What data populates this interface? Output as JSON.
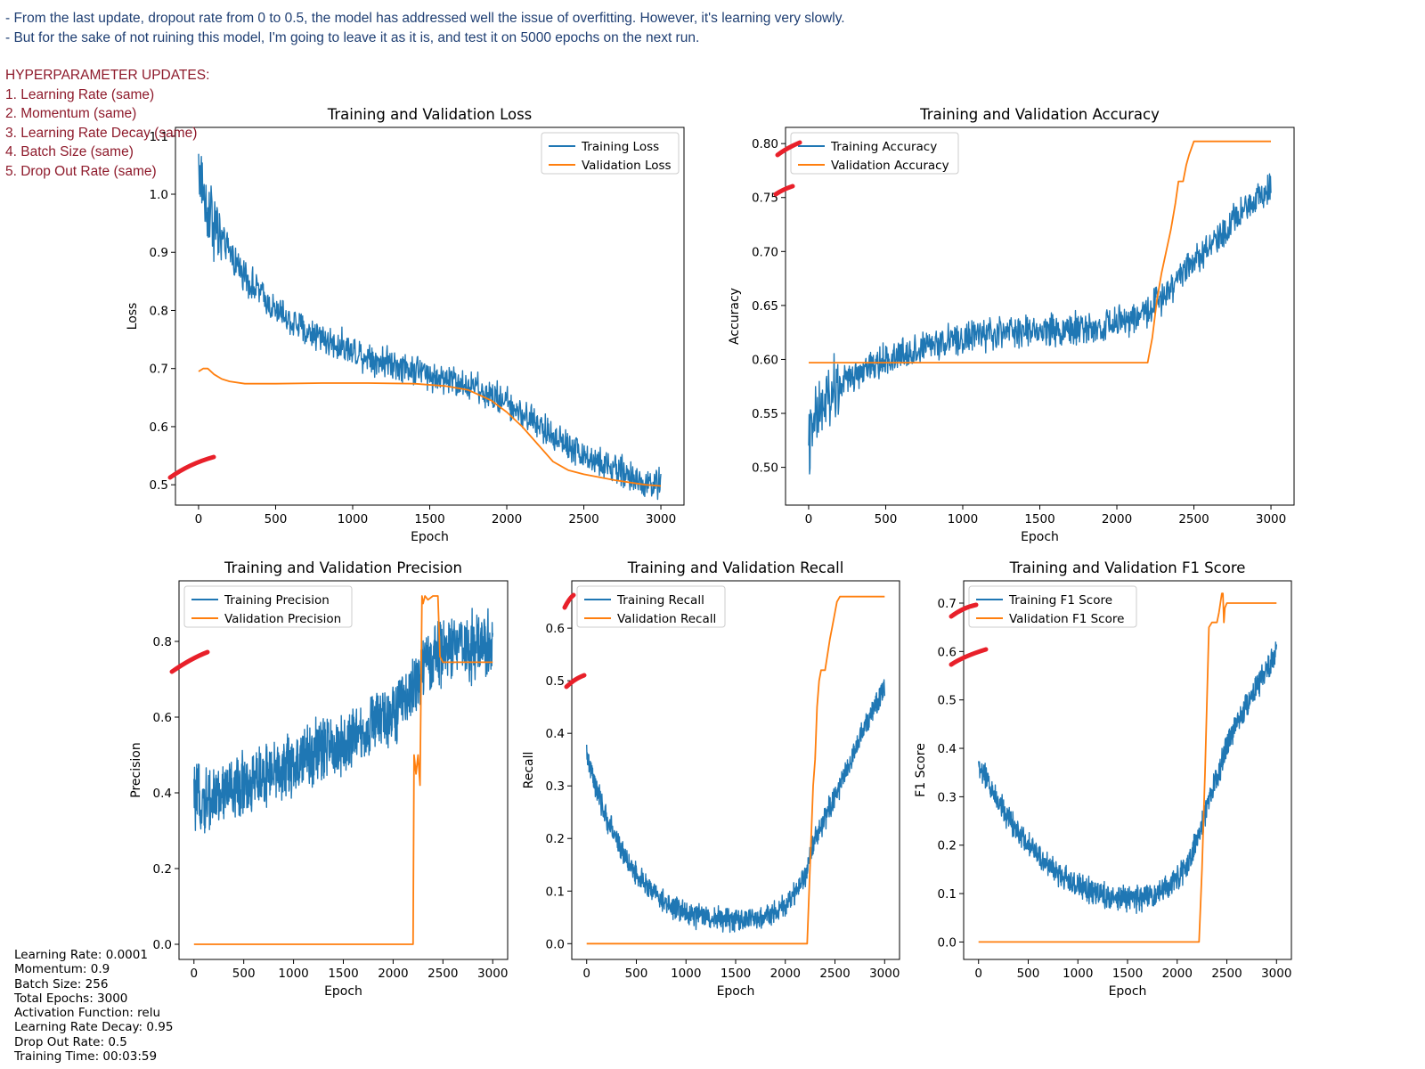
{
  "notes": [
    "- From the last update, dropout rate from 0 to 0.5, the model has addressed well the issue of overfitting. However, it's learning very slowly.",
    "- But for the sake of not ruining this model, I'm going to leave it as it is, and test it on 5000 epochs on the next run."
  ],
  "hyperparameters": {
    "title": "HYPERPARAMETER UPDATES:",
    "items": [
      "1. Learning Rate (same)",
      "2. Momentum (same)",
      "3. Learning Rate Decay (same)",
      "4. Batch Size (same)",
      "5. Drop Out Rate (same)"
    ]
  },
  "config": [
    "Learning Rate: 0.0001",
    "Momentum: 0.9",
    "Batch Size: 256",
    "Total Epochs: 3000",
    "Activation Function: relu",
    "Learning Rate Decay: 0.95",
    "Drop Out Rate: 0.5",
    "Training Time: 00:03:59"
  ],
  "colors": {
    "training": "#1f77b4",
    "validation": "#ff7f0e",
    "annotation": "#e8202a",
    "notes": "#1f3f73",
    "hyper": "#8e1a2b"
  },
  "chart_data": [
    {
      "type": "line",
      "title": "Training and Validation Loss",
      "xlabel": "Epoch",
      "ylabel": "Loss",
      "xlim": [
        -150,
        3150
      ],
      "ylim": [
        0.465,
        1.115
      ],
      "xticks": [
        0,
        500,
        1000,
        1500,
        2000,
        2500,
        3000
      ],
      "yticks": [
        "0.5",
        "0.6",
        "0.7",
        "0.8",
        "0.9",
        "1.0",
        "1.1"
      ],
      "legend": "upper right",
      "series": [
        {
          "name": "Training Loss",
          "kind": "training",
          "x": [
            0,
            50,
            100,
            200,
            300,
            400,
            500,
            700,
            900,
            1100,
            1300,
            1500,
            1700,
            1900,
            2100,
            2300,
            2500,
            2700,
            2900,
            3000
          ],
          "y": [
            1.05,
            0.98,
            0.95,
            0.9,
            0.86,
            0.83,
            0.8,
            0.765,
            0.74,
            0.72,
            0.705,
            0.69,
            0.675,
            0.655,
            0.625,
            0.585,
            0.55,
            0.525,
            0.505,
            0.5
          ]
        },
        {
          "name": "Validation Loss",
          "kind": "validation",
          "x": [
            0,
            30,
            60,
            100,
            150,
            200,
            300,
            500,
            800,
            1100,
            1400,
            1600,
            1750,
            1900,
            2000,
            2100,
            2200,
            2300,
            2400,
            2500,
            2700,
            2900,
            3000
          ],
          "y": [
            0.695,
            0.7,
            0.7,
            0.69,
            0.682,
            0.678,
            0.674,
            0.674,
            0.675,
            0.675,
            0.674,
            0.67,
            0.663,
            0.645,
            0.625,
            0.6,
            0.57,
            0.54,
            0.525,
            0.518,
            0.508,
            0.5,
            0.498
          ]
        }
      ]
    },
    {
      "type": "line",
      "title": "Training and Validation Accuracy",
      "xlabel": "Epoch",
      "ylabel": "Accuracy",
      "xlim": [
        -150,
        3150
      ],
      "ylim": [
        0.465,
        0.815
      ],
      "xticks": [
        0,
        500,
        1000,
        1500,
        2000,
        2500,
        3000
      ],
      "yticks": [
        "0.50",
        "0.55",
        "0.60",
        "0.65",
        "0.70",
        "0.75",
        "0.80"
      ],
      "legend": "upper left",
      "series": [
        {
          "name": "Training Accuracy",
          "kind": "training",
          "x": [
            0,
            50,
            100,
            200,
            300,
            500,
            700,
            900,
            1100,
            1300,
            1500,
            1700,
            1900,
            2100,
            2200,
            2300,
            2400,
            2500,
            2600,
            2700,
            2800,
            2900,
            3000
          ],
          "y": [
            0.52,
            0.545,
            0.56,
            0.575,
            0.585,
            0.6,
            0.61,
            0.617,
            0.622,
            0.625,
            0.627,
            0.628,
            0.63,
            0.637,
            0.645,
            0.66,
            0.677,
            0.692,
            0.705,
            0.72,
            0.735,
            0.75,
            0.762
          ]
        },
        {
          "name": "Validation Accuracy",
          "kind": "validation",
          "x": [
            0,
            2200,
            2230,
            2260,
            2290,
            2320,
            2350,
            2380,
            2400,
            2430,
            2450,
            2470,
            2500,
            3000
          ],
          "y": [
            0.597,
            0.597,
            0.62,
            0.655,
            0.68,
            0.7,
            0.72,
            0.745,
            0.765,
            0.765,
            0.78,
            0.79,
            0.802,
            0.802
          ]
        }
      ]
    },
    {
      "type": "line",
      "title": "Training and Validation Precision",
      "xlabel": "Epoch",
      "ylabel": "Precision",
      "xlim": [
        -150,
        3150
      ],
      "ylim": [
        -0.04,
        0.96
      ],
      "xticks": [
        0,
        500,
        1000,
        1500,
        2000,
        2500,
        3000
      ],
      "yticks": [
        "0.0",
        "0.2",
        "0.4",
        "0.6",
        "0.8"
      ],
      "legend": "upper left",
      "series": [
        {
          "name": "Training Precision",
          "kind": "training",
          "x": [
            0,
            200,
            400,
            600,
            800,
            1000,
            1200,
            1400,
            1600,
            1800,
            2000,
            2100,
            2200,
            2300,
            2400,
            2500,
            2700,
            2900,
            3000
          ],
          "y": [
            0.38,
            0.39,
            0.41,
            0.43,
            0.45,
            0.47,
            0.5,
            0.52,
            0.55,
            0.58,
            0.62,
            0.64,
            0.68,
            0.72,
            0.76,
            0.78,
            0.79,
            0.79,
            0.79
          ]
        },
        {
          "name": "Validation Precision",
          "kind": "validation",
          "x": [
            0,
            2200,
            2210,
            2230,
            2250,
            2270,
            2290,
            2300,
            2320,
            2350,
            2400,
            2450,
            2470,
            2500,
            2600,
            3000
          ],
          "y": [
            0.0,
            0.0,
            0.5,
            0.45,
            0.5,
            0.42,
            0.92,
            0.9,
            0.92,
            0.91,
            0.92,
            0.92,
            0.76,
            0.745,
            0.745,
            0.745
          ]
        }
      ]
    },
    {
      "type": "line",
      "title": "Training and Validation Recall",
      "xlabel": "Epoch",
      "ylabel": "Recall",
      "xlim": [
        -150,
        3150
      ],
      "ylim": [
        -0.03,
        0.69
      ],
      "xticks": [
        0,
        500,
        1000,
        1500,
        2000,
        2500,
        3000
      ],
      "yticks": [
        "0.0",
        "0.1",
        "0.2",
        "0.3",
        "0.4",
        "0.5",
        "0.6"
      ],
      "legend": "upper left",
      "series": [
        {
          "name": "Training Recall",
          "kind": "training",
          "x": [
            0,
            100,
            200,
            400,
            600,
            800,
            1000,
            1200,
            1400,
            1600,
            1800,
            2000,
            2200,
            2300,
            2400,
            2500,
            2600,
            2700,
            2800,
            2900,
            3000
          ],
          "y": [
            0.36,
            0.29,
            0.24,
            0.16,
            0.11,
            0.075,
            0.058,
            0.05,
            0.045,
            0.045,
            0.05,
            0.07,
            0.13,
            0.2,
            0.24,
            0.28,
            0.32,
            0.37,
            0.41,
            0.45,
            0.49
          ]
        },
        {
          "name": "Validation Recall",
          "kind": "validation",
          "x": [
            0,
            2220,
            2250,
            2280,
            2300,
            2320,
            2340,
            2360,
            2400,
            2450,
            2470,
            2500,
            2520,
            2550,
            3000
          ],
          "y": [
            0.0,
            0.0,
            0.15,
            0.3,
            0.35,
            0.45,
            0.5,
            0.52,
            0.52,
            0.58,
            0.6,
            0.63,
            0.65,
            0.66,
            0.66
          ]
        }
      ]
    },
    {
      "type": "line",
      "title": "Training and Validation F1 Score",
      "xlabel": "Epoch",
      "ylabel": "F1 Score",
      "xlim": [
        -150,
        3150
      ],
      "ylim": [
        -0.036,
        0.746
      ],
      "xticks": [
        0,
        500,
        1000,
        1500,
        2000,
        2500,
        3000
      ],
      "yticks": [
        "0.0",
        "0.1",
        "0.2",
        "0.3",
        "0.4",
        "0.5",
        "0.6",
        "0.7"
      ],
      "legend": "upper left",
      "series": [
        {
          "name": "Training F1 Score",
          "kind": "training",
          "x": [
            0,
            100,
            200,
            400,
            600,
            800,
            1000,
            1200,
            1400,
            1600,
            1800,
            2000,
            2100,
            2200,
            2300,
            2400,
            2500,
            2600,
            2700,
            2800,
            2900,
            3000
          ],
          "y": [
            0.36,
            0.33,
            0.29,
            0.23,
            0.18,
            0.14,
            0.115,
            0.1,
            0.09,
            0.09,
            0.1,
            0.13,
            0.16,
            0.21,
            0.28,
            0.34,
            0.4,
            0.45,
            0.49,
            0.53,
            0.56,
            0.6
          ]
        },
        {
          "name": "Validation F1 Score",
          "kind": "validation",
          "x": [
            0,
            2220,
            2250,
            2280,
            2300,
            2320,
            2350,
            2400,
            2420,
            2450,
            2460,
            2470,
            2480,
            2500,
            2600,
            3000
          ],
          "y": [
            0.0,
            0.0,
            0.15,
            0.35,
            0.5,
            0.65,
            0.66,
            0.66,
            0.68,
            0.72,
            0.72,
            0.66,
            0.69,
            0.7,
            0.7,
            0.7
          ]
        }
      ]
    }
  ]
}
